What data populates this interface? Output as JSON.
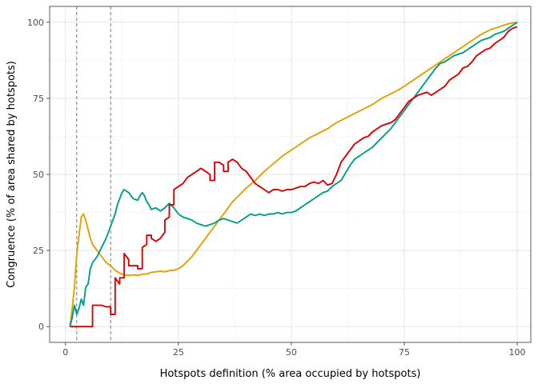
{
  "chart_data": {
    "type": "line",
    "title": "",
    "xlabel": "Hotspots definition (% area occupied by hotspots)",
    "ylabel": "Congruence (% of area shared by hotspots)",
    "xlim": [
      -3.5,
      103
    ],
    "ylim": [
      -5.2,
      105.2
    ],
    "x_ticks": [
      0,
      25,
      50,
      75,
      100
    ],
    "y_ticks": [
      0,
      25,
      50,
      75,
      100
    ],
    "grid": true,
    "legend": "none",
    "vlines": [
      2.5,
      10
    ],
    "series": [
      {
        "color": "#E69F00",
        "points": [
          [
            1,
            0
          ],
          [
            1.5,
            6
          ],
          [
            2,
            13
          ],
          [
            2.5,
            24
          ],
          [
            3,
            30
          ],
          [
            3.5,
            36
          ],
          [
            4,
            37
          ],
          [
            4.5,
            35
          ],
          [
            5,
            32
          ],
          [
            5.5,
            29
          ],
          [
            6,
            27
          ],
          [
            7,
            25
          ],
          [
            8,
            23
          ],
          [
            9,
            21
          ],
          [
            10,
            20
          ],
          [
            11,
            18.5
          ],
          [
            12,
            17.5
          ],
          [
            13,
            17
          ],
          [
            14,
            16.8
          ],
          [
            15,
            17
          ],
          [
            16,
            16.8
          ],
          [
            17,
            17.2
          ],
          [
            18,
            17.3
          ],
          [
            19,
            17.8
          ],
          [
            20,
            18
          ],
          [
            21,
            18.2
          ],
          [
            22,
            18
          ],
          [
            23,
            18.4
          ],
          [
            24,
            18.5
          ],
          [
            25,
            19
          ],
          [
            26,
            20
          ],
          [
            27,
            21.5
          ],
          [
            28,
            23
          ],
          [
            29,
            25
          ],
          [
            30,
            27
          ],
          [
            31,
            29
          ],
          [
            32,
            31
          ],
          [
            33,
            33
          ],
          [
            34,
            35
          ],
          [
            35,
            37
          ],
          [
            36,
            39
          ],
          [
            37,
            41
          ],
          [
            38,
            42.5
          ],
          [
            39,
            44
          ],
          [
            40,
            45.5
          ],
          [
            42,
            48
          ],
          [
            44,
            51
          ],
          [
            46,
            53.5
          ],
          [
            48,
            56
          ],
          [
            50,
            58
          ],
          [
            52,
            60
          ],
          [
            54,
            62
          ],
          [
            56,
            63.5
          ],
          [
            58,
            65
          ],
          [
            60,
            67
          ],
          [
            62,
            68.5
          ],
          [
            64,
            70
          ],
          [
            66,
            71.5
          ],
          [
            68,
            73
          ],
          [
            70,
            75
          ],
          [
            72,
            76.5
          ],
          [
            74,
            78
          ],
          [
            76,
            80
          ],
          [
            78,
            82
          ],
          [
            80,
            84
          ],
          [
            82,
            86
          ],
          [
            84,
            88
          ],
          [
            86,
            90
          ],
          [
            88,
            92
          ],
          [
            90,
            94
          ],
          [
            92,
            96
          ],
          [
            94,
            97.5
          ],
          [
            96,
            98.5
          ],
          [
            98,
            99.5
          ],
          [
            100,
            100
          ]
        ]
      },
      {
        "color": "#009E8A",
        "points": [
          [
            1,
            0
          ],
          [
            1.5,
            3
          ],
          [
            2,
            7
          ],
          [
            2.5,
            4
          ],
          [
            3,
            6
          ],
          [
            3.5,
            9
          ],
          [
            4,
            7
          ],
          [
            4.5,
            13
          ],
          [
            5,
            14
          ],
          [
            5.5,
            19
          ],
          [
            6,
            21
          ],
          [
            7,
            23
          ],
          [
            8,
            26
          ],
          [
            9,
            29
          ],
          [
            10,
            33
          ],
          [
            10.5,
            35
          ],
          [
            11,
            37
          ],
          [
            11.5,
            40
          ],
          [
            12,
            42
          ],
          [
            12.5,
            44
          ],
          [
            13,
            45
          ],
          [
            14,
            44
          ],
          [
            15,
            42
          ],
          [
            16,
            41.5
          ],
          [
            16.5,
            43
          ],
          [
            17,
            44
          ],
          [
            17.5,
            43
          ],
          [
            18,
            41
          ],
          [
            18.5,
            40
          ],
          [
            19,
            38.5
          ],
          [
            20,
            39
          ],
          [
            21,
            38
          ],
          [
            22,
            39
          ],
          [
            23,
            40.5
          ],
          [
            24,
            39
          ],
          [
            25,
            37
          ],
          [
            26,
            36
          ],
          [
            27,
            35.5
          ],
          [
            28,
            35
          ],
          [
            29,
            34
          ],
          [
            30,
            33.5
          ],
          [
            31,
            33
          ],
          [
            32,
            33.5
          ],
          [
            33,
            34
          ],
          [
            34,
            35
          ],
          [
            35,
            35.5
          ],
          [
            36,
            35
          ],
          [
            37,
            34.5
          ],
          [
            38,
            34
          ],
          [
            39,
            35
          ],
          [
            40,
            36
          ],
          [
            41,
            37
          ],
          [
            42,
            36.5
          ],
          [
            43,
            37
          ],
          [
            44,
            36.5
          ],
          [
            45,
            37
          ],
          [
            46,
            37
          ],
          [
            47,
            37.5
          ],
          [
            48,
            37
          ],
          [
            49,
            37.5
          ],
          [
            50,
            37.5
          ],
          [
            51,
            38
          ],
          [
            52,
            39
          ],
          [
            53,
            40
          ],
          [
            54,
            41
          ],
          [
            55,
            42
          ],
          [
            56,
            43
          ],
          [
            57,
            44
          ],
          [
            58,
            44.5
          ],
          [
            59,
            46
          ],
          [
            60,
            47
          ],
          [
            61,
            48
          ],
          [
            62,
            50.5
          ],
          [
            63,
            53
          ],
          [
            64,
            55
          ],
          [
            65,
            56
          ],
          [
            66,
            57
          ],
          [
            67,
            58
          ],
          [
            68,
            59
          ],
          [
            69,
            60.5
          ],
          [
            70,
            62
          ],
          [
            71,
            63.5
          ],
          [
            72,
            65
          ],
          [
            73,
            67
          ],
          [
            74,
            69
          ],
          [
            75,
            71
          ],
          [
            76,
            73
          ],
          [
            77,
            75
          ],
          [
            78,
            77
          ],
          [
            79,
            79
          ],
          [
            80,
            81
          ],
          [
            81,
            83
          ],
          [
            82,
            85
          ],
          [
            83,
            86.5
          ],
          [
            84,
            87
          ],
          [
            85,
            88
          ],
          [
            86,
            89
          ],
          [
            87,
            89.5
          ],
          [
            88,
            90
          ],
          [
            89,
            91
          ],
          [
            90,
            92
          ],
          [
            91,
            93
          ],
          [
            92,
            94
          ],
          [
            93,
            94.5
          ],
          [
            94,
            95
          ],
          [
            95,
            96
          ],
          [
            96,
            96.5
          ],
          [
            97,
            97
          ],
          [
            98,
            98
          ],
          [
            99,
            99
          ],
          [
            100,
            100
          ]
        ]
      },
      {
        "color": "#E00000",
        "points": [
          [
            1,
            0
          ],
          [
            2,
            0
          ],
          [
            3,
            0
          ],
          [
            4,
            0
          ],
          [
            5,
            0
          ],
          [
            6,
            0
          ],
          [
            6,
            7
          ],
          [
            7,
            7
          ],
          [
            8,
            7
          ],
          [
            9,
            6.5
          ],
          [
            10,
            6.5
          ],
          [
            10,
            4
          ],
          [
            11,
            4
          ],
          [
            11,
            16
          ],
          [
            12,
            14
          ],
          [
            12,
            16
          ],
          [
            13,
            16
          ],
          [
            13,
            24
          ],
          [
            14,
            22
          ],
          [
            14,
            20
          ],
          [
            15,
            20
          ],
          [
            16,
            20
          ],
          [
            16,
            19
          ],
          [
            17,
            19
          ],
          [
            17,
            26
          ],
          [
            18,
            27
          ],
          [
            18,
            30
          ],
          [
            19,
            30
          ],
          [
            19,
            29
          ],
          [
            20,
            28
          ],
          [
            21,
            29
          ],
          [
            22,
            31
          ],
          [
            22,
            35
          ],
          [
            23,
            36
          ],
          [
            23,
            40
          ],
          [
            24,
            40
          ],
          [
            24,
            45
          ],
          [
            25,
            46
          ],
          [
            26,
            47
          ],
          [
            27,
            49
          ],
          [
            28,
            50
          ],
          [
            29,
            51
          ],
          [
            30,
            52
          ],
          [
            31,
            51
          ],
          [
            32,
            50
          ],
          [
            32,
            48
          ],
          [
            33,
            48
          ],
          [
            33,
            54
          ],
          [
            34,
            54
          ],
          [
            35,
            53
          ],
          [
            35,
            51
          ],
          [
            36,
            51
          ],
          [
            36,
            54
          ],
          [
            37,
            55
          ],
          [
            38,
            54
          ],
          [
            39,
            52
          ],
          [
            40,
            51
          ],
          [
            41,
            49
          ],
          [
            42,
            47
          ],
          [
            43,
            46
          ],
          [
            44,
            45
          ],
          [
            45,
            44
          ],
          [
            46,
            45
          ],
          [
            47,
            45
          ],
          [
            48,
            44.5
          ],
          [
            49,
            45
          ],
          [
            50,
            45
          ],
          [
            51,
            45.5
          ],
          [
            52,
            46
          ],
          [
            53,
            46
          ],
          [
            54,
            47
          ],
          [
            55,
            47.5
          ],
          [
            56,
            47
          ],
          [
            57,
            48
          ],
          [
            58,
            46.5
          ],
          [
            59,
            47
          ],
          [
            60,
            50
          ],
          [
            61,
            54
          ],
          [
            62,
            56
          ],
          [
            63,
            58
          ],
          [
            64,
            60
          ],
          [
            65,
            61
          ],
          [
            66,
            62
          ],
          [
            67,
            62.5
          ],
          [
            68,
            64
          ],
          [
            69,
            65
          ],
          [
            70,
            66
          ],
          [
            71,
            66.5
          ],
          [
            72,
            67
          ],
          [
            73,
            68
          ],
          [
            74,
            70
          ],
          [
            75,
            72
          ],
          [
            76,
            74
          ],
          [
            77,
            75
          ],
          [
            78,
            76
          ],
          [
            79,
            76.5
          ],
          [
            80,
            77
          ],
          [
            81,
            76
          ],
          [
            82,
            77
          ],
          [
            83,
            78
          ],
          [
            84,
            79
          ],
          [
            85,
            81
          ],
          [
            86,
            82
          ],
          [
            87,
            83
          ],
          [
            88,
            85
          ],
          [
            89,
            85.5
          ],
          [
            90,
            87
          ],
          [
            91,
            89
          ],
          [
            92,
            90
          ],
          [
            93,
            91
          ],
          [
            94,
            91.5
          ],
          [
            95,
            93
          ],
          [
            96,
            94
          ],
          [
            97,
            95
          ],
          [
            98,
            97
          ],
          [
            99,
            98
          ],
          [
            100,
            98.5
          ]
        ]
      }
    ]
  }
}
